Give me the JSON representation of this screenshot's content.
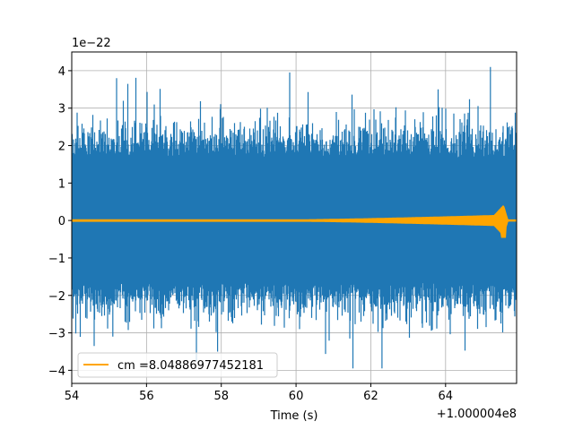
{
  "chart_data": {
    "type": "line",
    "xlabel": "Time (s)",
    "ylabel": "",
    "x_offset_label": "+1.000004e8",
    "y_scale_label": "1e−22",
    "xlim": [
      54,
      65.9
    ],
    "ylim": [
      -4.35,
      4.5
    ],
    "grid": true,
    "legend_position": "lower left",
    "x_ticks": [
      {
        "value": 54,
        "label": "54"
      },
      {
        "value": 56,
        "label": "56"
      },
      {
        "value": 58,
        "label": "58"
      },
      {
        "value": 60,
        "label": "60"
      },
      {
        "value": 62,
        "label": "62"
      },
      {
        "value": 64,
        "label": "64"
      }
    ],
    "y_ticks": [
      {
        "value": 4,
        "label": "4"
      },
      {
        "value": 3,
        "label": "3"
      },
      {
        "value": 2,
        "label": "2"
      },
      {
        "value": 1,
        "label": "1"
      },
      {
        "value": 0,
        "label": "0"
      },
      {
        "value": -1,
        "label": "−1"
      },
      {
        "value": -2,
        "label": "−2"
      },
      {
        "value": -3,
        "label": "−3"
      },
      {
        "value": -4,
        "label": "−4"
      }
    ],
    "series": [
      {
        "color": "#1f77b4",
        "description": "noisy strain data",
        "x_range": [
          54,
          65.9
        ],
        "max": 4.1,
        "min": -3.95,
        "typical_envelope": 1.85
      },
      {
        "name": "cm =8.04886977452181",
        "color": "#ffa500",
        "description": "chirp template",
        "x_range": [
          54,
          65.9
        ],
        "peak_time": 65.55,
        "peak_amplitude": 0.4,
        "min_amplitude": -0.45
      }
    ]
  }
}
